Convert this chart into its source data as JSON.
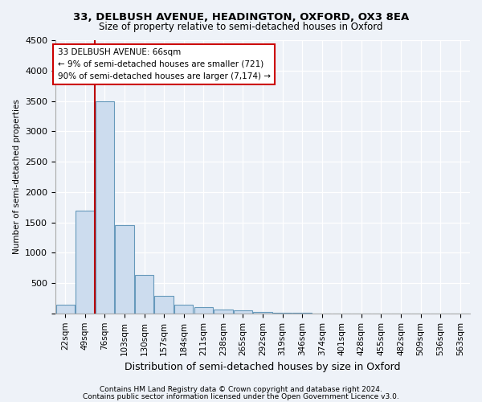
{
  "title1": "33, DELBUSH AVENUE, HEADINGTON, OXFORD, OX3 8EA",
  "title2": "Size of property relative to semi-detached houses in Oxford",
  "xlabel": "Distribution of semi-detached houses by size in Oxford",
  "ylabel": "Number of semi-detached properties",
  "annotation_line1": "33 DELBUSH AVENUE: 66sqm",
  "annotation_line2": "← 9% of semi-detached houses are smaller (721)",
  "annotation_line3": "90% of semi-detached houses are larger (7,174) →",
  "categories": [
    "22sqm",
    "49sqm",
    "76sqm",
    "103sqm",
    "130sqm",
    "157sqm",
    "184sqm",
    "211sqm",
    "238sqm",
    "265sqm",
    "292sqm",
    "319sqm",
    "346sqm",
    "374sqm",
    "401sqm",
    "428sqm",
    "455sqm",
    "482sqm",
    "509sqm",
    "536sqm",
    "563sqm"
  ],
  "values": [
    150,
    1700,
    3500,
    1450,
    630,
    285,
    145,
    100,
    70,
    50,
    25,
    12,
    7,
    4,
    2,
    1,
    1,
    0,
    0,
    0,
    0
  ],
  "bar_color": "#ccdcee",
  "bar_edge_color": "#6699bb",
  "red_line_x": 1.5,
  "red_line_color": "#bb0000",
  "ylim": [
    0,
    4500
  ],
  "yticks": [
    0,
    500,
    1000,
    1500,
    2000,
    2500,
    3000,
    3500,
    4000,
    4500
  ],
  "background_color": "#eef2f8",
  "annotation_box_facecolor": "#ffffff",
  "annotation_box_edgecolor": "#cc0000",
  "footnote1": "Contains HM Land Registry data © Crown copyright and database right 2024.",
  "footnote2": "Contains public sector information licensed under the Open Government Licence v3.0."
}
